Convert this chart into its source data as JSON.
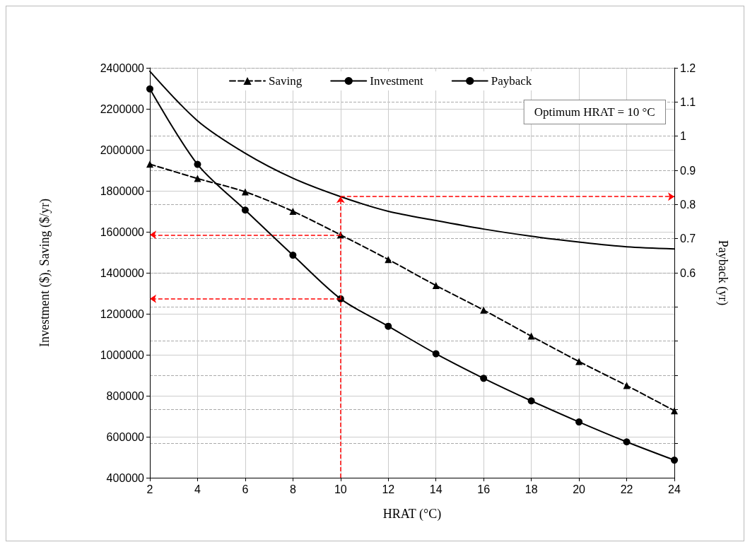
{
  "chart_data": {
    "type": "line",
    "xlabel": "HRAT (°C)",
    "ylabel": "Investment ($), Saving ($/yr)",
    "y2label": "Payback (yr)",
    "x": [
      2,
      4,
      6,
      8,
      10,
      12,
      14,
      16,
      18,
      20,
      22,
      24
    ],
    "series": [
      {
        "name": "Saving",
        "color": "#000000",
        "marker": "triangle",
        "line_style": "dashed",
        "values": [
          1930000,
          1860000,
          1795000,
          1700000,
          1585000,
          1465000,
          1338000,
          1218000,
          1091000,
          967000,
          850000,
          727000
        ]
      },
      {
        "name": "Investment",
        "color": "#000000",
        "marker": "circle",
        "line_style": "solid",
        "values": [
          2297000,
          1929000,
          1706000,
          1486000,
          1273000,
          1139000,
          1005000,
          885000,
          775000,
          672000,
          575000,
          486000
        ]
      },
      {
        "name": "Payback",
        "color": "#000000",
        "marker": "none",
        "line_style": "solid",
        "axis": "y2",
        "values": [
          1.19,
          1.045,
          0.95,
          0.877,
          0.823,
          0.78,
          0.753,
          0.728,
          0.707,
          0.69,
          0.676,
          0.67
        ]
      }
    ],
    "xlim": [
      2,
      24
    ],
    "xticks": [
      2,
      4,
      6,
      8,
      10,
      12,
      14,
      16,
      18,
      20,
      22,
      24
    ],
    "ylim": [
      400000,
      2400000
    ],
    "yticks": [
      400000,
      600000,
      800000,
      1000000,
      1200000,
      1400000,
      1600000,
      1800000,
      2000000,
      2200000,
      2400000
    ],
    "y2lim": [
      0,
      1.2
    ],
    "y2ticks": [
      {
        "value": 0.1,
        "label": null
      },
      {
        "value": 0.2,
        "label": null
      },
      {
        "value": 0.3,
        "label": null
      },
      {
        "value": 0.4,
        "label": null
      },
      {
        "value": 0.5,
        "label": null
      },
      0.6,
      0.7,
      0.8,
      0.9,
      1.0,
      1.1,
      1.2
    ],
    "ref_lines": [
      {
        "axis": "x",
        "value": 10,
        "color": "#ff0000",
        "line_style": "dashed"
      }
    ],
    "annotations": [
      "Optimum HRAT = 10 °C"
    ],
    "grid": true,
    "legend": "top"
  }
}
